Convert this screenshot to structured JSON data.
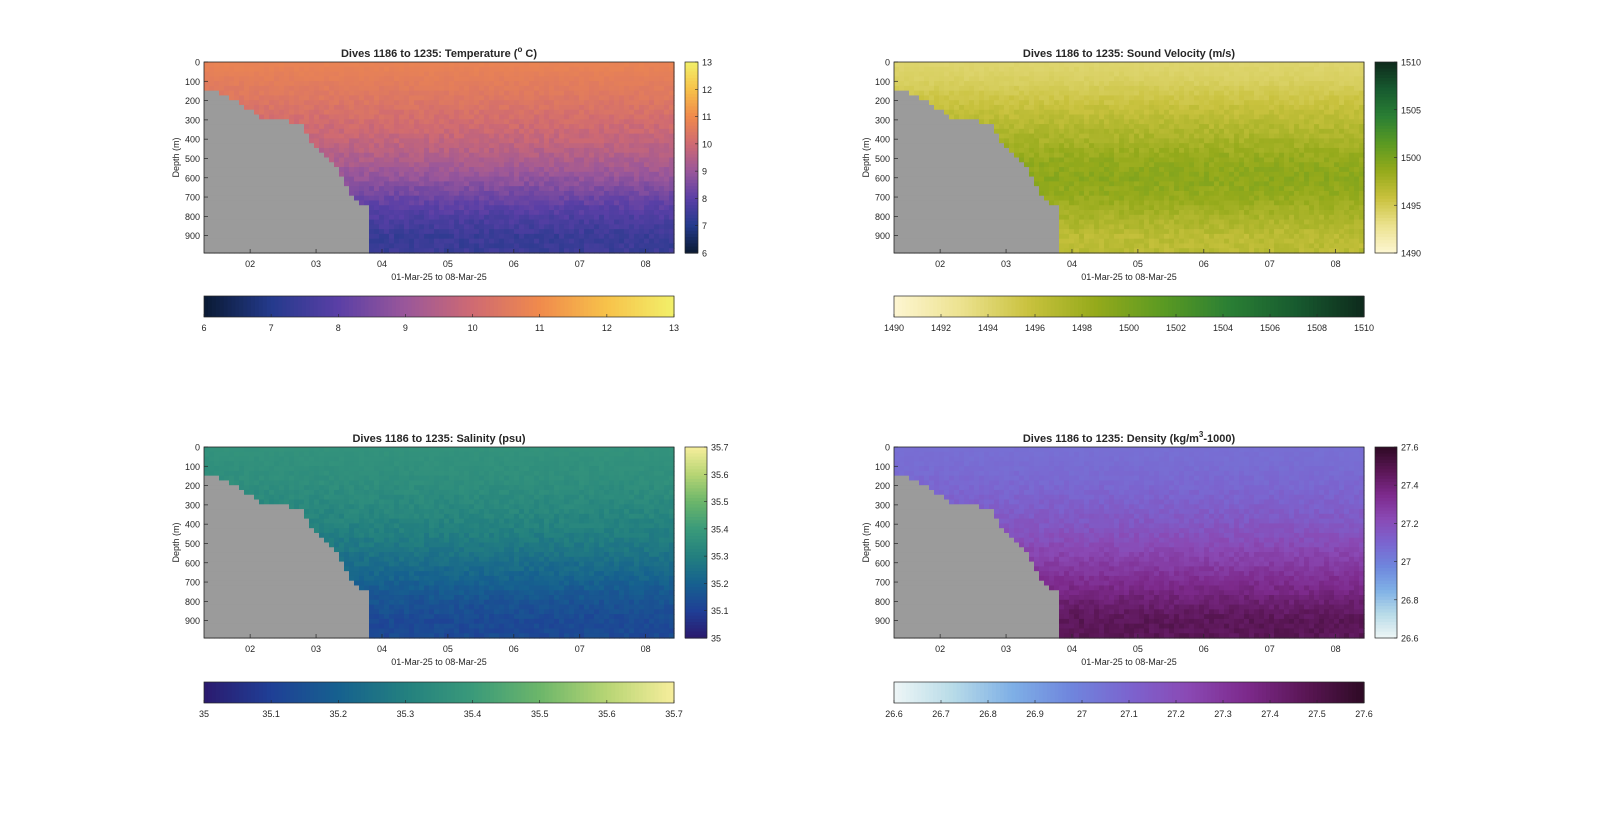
{
  "figure": {
    "xlabel": "01-Mar-25 to 08-Mar-25",
    "ylabel": "Depth (m)",
    "x_ticks": [
      "02",
      "03",
      "04",
      "05",
      "06",
      "07",
      "08"
    ],
    "y_ticks": [
      "0",
      "100",
      "200",
      "300",
      "400",
      "500",
      "600",
      "700",
      "800",
      "900"
    ]
  },
  "chart_data": [
    {
      "type": "heatmap",
      "title": "Dives 1186 to 1235: Temperature (",
      "title_sup": "o",
      "title_suffix": " C)",
      "xlabel": "01-Mar-25 to 08-Mar-25",
      "ylabel": "Depth (m)",
      "x_ticks": [
        "02",
        "03",
        "04",
        "05",
        "06",
        "07",
        "08"
      ],
      "y_ticks": [
        0,
        100,
        200,
        300,
        400,
        500,
        600,
        700,
        800,
        900
      ],
      "ylim": [
        0,
        990
      ],
      "clim": [
        6,
        13
      ],
      "cbar_vertical_ticks": [
        "6",
        "7",
        "8",
        "9",
        "10",
        "11",
        "12",
        "13"
      ],
      "cbar_horizontal_ticks": [
        "6",
        "7",
        "8",
        "9",
        "10",
        "11",
        "12",
        "13"
      ],
      "colormap": [
        "#0a1a33",
        "#243a8c",
        "#5a3fa6",
        "#9a579a",
        "#cf6a72",
        "#f08a4c",
        "#f7c24a",
        "#f2f06a"
      ],
      "surface_value": 10.6,
      "deep_value": 7.3,
      "approx_profile": [
        [
          0,
          10.8
        ],
        [
          100,
          10.6
        ],
        [
          200,
          10.4
        ],
        [
          300,
          10.1
        ],
        [
          400,
          9.8
        ],
        [
          500,
          9.4
        ],
        [
          600,
          8.9
        ],
        [
          700,
          8.3
        ],
        [
          800,
          7.8
        ],
        [
          900,
          7.4
        ]
      ]
    },
    {
      "type": "heatmap",
      "title": "Dives 1186 to 1235: Sound Velocity (m/s)",
      "xlabel": "01-Mar-25 to 08-Mar-25",
      "ylabel": "Depth (m)",
      "x_ticks": [
        "02",
        "03",
        "04",
        "05",
        "06",
        "07",
        "08"
      ],
      "y_ticks": [
        0,
        100,
        200,
        300,
        400,
        500,
        600,
        700,
        800,
        900
      ],
      "ylim": [
        0,
        990
      ],
      "clim": [
        1490,
        1510
      ],
      "cbar_vertical_ticks": [
        "1490",
        "1495",
        "1500",
        "1505",
        "1510"
      ],
      "cbar_horizontal_ticks": [
        "1490",
        "1492",
        "1494",
        "1496",
        "1498",
        "1500",
        "1502",
        "1504",
        "1506",
        "1508",
        "1510"
      ],
      "colormap": [
        "#fdf6d2",
        "#ece28f",
        "#c9c23e",
        "#95aa1b",
        "#5b9a22",
        "#2a7f34",
        "#175a2f",
        "#0e2a1c"
      ],
      "surface_value": 1494.5,
      "deep_value": 1497.0,
      "approx_profile": [
        [
          0,
          1494.0
        ],
        [
          100,
          1494.5
        ],
        [
          200,
          1495.5
        ],
        [
          300,
          1496.5
        ],
        [
          400,
          1497.5
        ],
        [
          500,
          1498.5
        ],
        [
          600,
          1499.0
        ],
        [
          700,
          1498.5
        ],
        [
          800,
          1497.5
        ],
        [
          900,
          1496.5
        ]
      ]
    },
    {
      "type": "heatmap",
      "title": "Dives 1186 to 1235: Salinity (psu)",
      "xlabel": "01-Mar-25 to 08-Mar-25",
      "ylabel": "Depth (m)",
      "x_ticks": [
        "02",
        "03",
        "04",
        "05",
        "06",
        "07",
        "08"
      ],
      "y_ticks": [
        0,
        100,
        200,
        300,
        400,
        500,
        600,
        700,
        800,
        900
      ],
      "ylim": [
        0,
        990
      ],
      "clim": [
        35,
        35.7
      ],
      "cbar_vertical_ticks": [
        "35",
        "35.1",
        "35.2",
        "35.3",
        "35.4",
        "35.5",
        "35.6",
        "35.7"
      ],
      "cbar_horizontal_ticks": [
        "35",
        "35.1",
        "35.2",
        "35.3",
        "35.4",
        "35.5",
        "35.6",
        "35.7"
      ],
      "colormap": [
        "#2b1a6e",
        "#1f3f96",
        "#16618f",
        "#23807f",
        "#3a9a7a",
        "#6cb66a",
        "#b7d574",
        "#f7ee9c"
      ],
      "surface_value": 35.36,
      "deep_value": 35.12,
      "approx_profile": [
        [
          0,
          35.37
        ],
        [
          100,
          35.36
        ],
        [
          200,
          35.35
        ],
        [
          300,
          35.33
        ],
        [
          400,
          35.31
        ],
        [
          500,
          35.28
        ],
        [
          600,
          35.24
        ],
        [
          700,
          35.2
        ],
        [
          800,
          35.16
        ],
        [
          900,
          35.13
        ]
      ]
    },
    {
      "type": "heatmap",
      "title": "Dives 1186 to 1235: Density (kg/m",
      "title_sup": "3",
      "title_suffix": "-1000)",
      "xlabel": "01-Mar-25 to 08-Mar-25",
      "ylabel": "Depth (m)",
      "x_ticks": [
        "02",
        "03",
        "04",
        "05",
        "06",
        "07",
        "08"
      ],
      "y_ticks": [
        0,
        100,
        200,
        300,
        400,
        500,
        600,
        700,
        800,
        900
      ],
      "ylim": [
        0,
        990
      ],
      "clim": [
        26.6,
        27.6
      ],
      "cbar_vertical_ticks": [
        "26.6",
        "26.8",
        "27",
        "27.2",
        "27.4",
        "27.6"
      ],
      "cbar_horizontal_ticks": [
        "26.6",
        "26.7",
        "26.8",
        "26.9",
        "27",
        "27.1",
        "27.2",
        "27.3",
        "27.4",
        "27.5",
        "27.6"
      ],
      "colormap": [
        "#eef6f6",
        "#b8dbe8",
        "#7fb0e6",
        "#6f86dd",
        "#7b64cf",
        "#8a49b4",
        "#7d2a8c",
        "#5a1655",
        "#2e0a24"
      ],
      "surface_value": 27.08,
      "deep_value": 27.45,
      "approx_profile": [
        [
          0,
          27.06
        ],
        [
          100,
          27.07
        ],
        [
          200,
          27.09
        ],
        [
          300,
          27.12
        ],
        [
          400,
          27.16
        ],
        [
          500,
          27.21
        ],
        [
          600,
          27.27
        ],
        [
          700,
          27.34
        ],
        [
          800,
          27.41
        ],
        [
          900,
          27.47
        ]
      ]
    }
  ],
  "landmask": {
    "color": "#9b9b9b",
    "approx_seafloor_depth_by_day": [
      [
        1.35,
        150
      ],
      [
        1.55,
        160
      ],
      [
        1.75,
        200
      ],
      [
        2.0,
        250
      ],
      [
        2.2,
        300
      ],
      [
        2.5,
        300
      ],
      [
        2.8,
        330
      ],
      [
        3.0,
        450
      ],
      [
        3.3,
        550
      ],
      [
        3.55,
        700
      ],
      [
        3.78,
        750
      ],
      [
        3.82,
        990
      ]
    ]
  }
}
